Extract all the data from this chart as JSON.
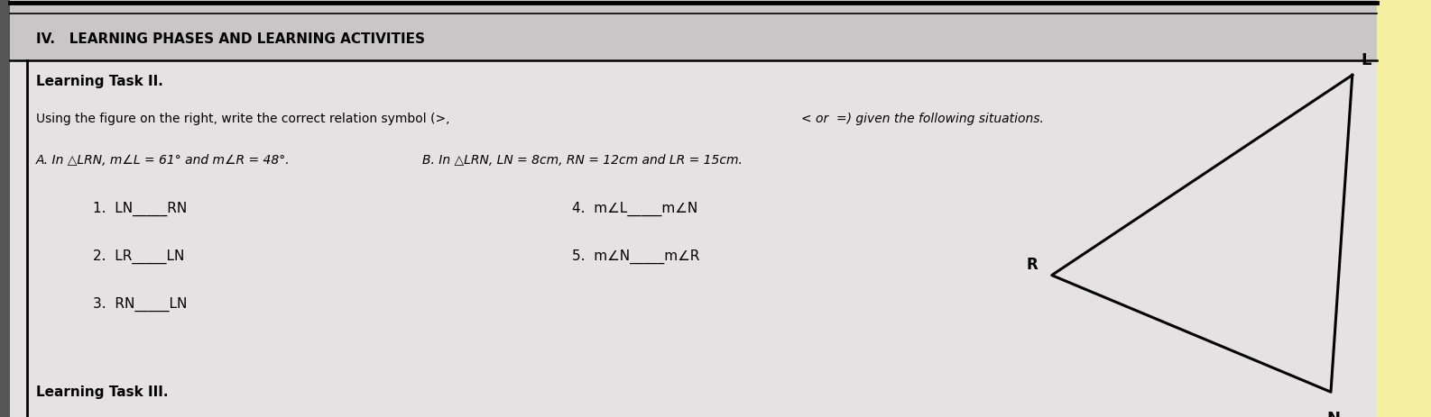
{
  "title": "IV.   LEARNING PHASES AND LEARNING ACTIVITIES",
  "section_title": "Learning Task II.",
  "instruction_normal": "Using the figure on the right, write the correct relation symbol (>, ",
  "instruction_italic": "< or  =) given the following situations.",
  "given_a": "A. In △LRN, m∠L = 61° and m∠R = 48°.",
  "given_b": "B. In △LRN, LN = 8cm, RN = 12cm and LR = 15cm.",
  "item1": "1.  LN_____RN",
  "item2": "2.  LR_____LN",
  "item3": "3.  RN_____LN",
  "item4": "4.  m∠L_____m∠N",
  "item5": "5.  m∠N_____m∠R",
  "footer": "Learning Task III.",
  "bg_color": "#d0cece",
  "header_bg": "#b0aeae",
  "text_color": "#000000",
  "yellow_right": "#f5f0a0",
  "white_content": "#e8e8e8",
  "figsize": [
    15.86,
    4.63
  ],
  "dpi": 100,
  "tri_L": [
    0.945,
    0.82
  ],
  "tri_R": [
    0.735,
    0.34
  ],
  "tri_N": [
    0.93,
    0.06
  ]
}
